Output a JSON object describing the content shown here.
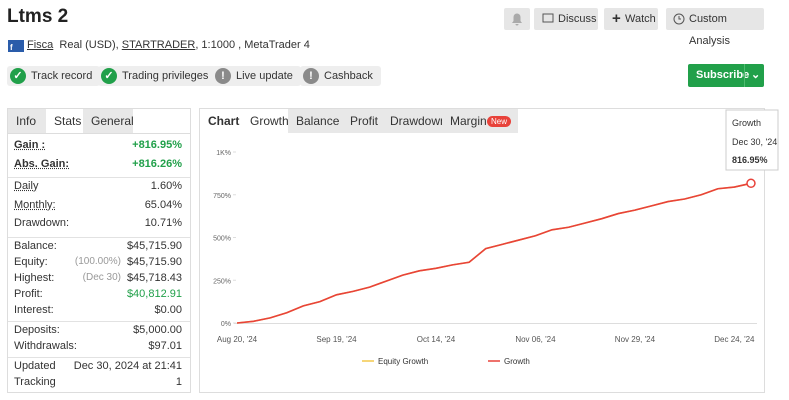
{
  "header": {
    "title": "Ltms 2",
    "buttons": [
      "Discuss",
      "Watch",
      "Custom Analysis"
    ]
  },
  "account": {
    "broker": "Fisca",
    "type": "Real (USD),",
    "server": "STARTRADER",
    "details": ", 1:1000 , MetaTrader 4"
  },
  "badges": [
    {
      "label": "Track record",
      "color": "#21a04a"
    },
    {
      "label": "Trading privileges",
      "color": "#21a04a"
    },
    {
      "label": "Live update",
      "color": "#8a8a8a"
    },
    {
      "label": "Cashback",
      "color": "#8a8a8a"
    }
  ],
  "subscribe": "Subscribe",
  "stats": {
    "tabs": [
      "Info",
      "Stats",
      "General"
    ],
    "groups": [
      [
        {
          "label": "Gain :",
          "value": "+816.95%",
          "color": "#21a04a"
        },
        {
          "label": "Abs. Gain:",
          "value": "+816.26%",
          "color": "#21a04a"
        }
      ],
      [
        {
          "label": "Daily",
          "value": "1.60%"
        },
        {
          "label": "Monthly:",
          "value": "65.04%"
        },
        {
          "label": "Drawdown:",
          "value": "10.71%"
        }
      ],
      [
        {
          "label": "Balance:",
          "value": "$45,715.90"
        },
        {
          "label": "Equity:",
          "note": "(100.00%)",
          "value": "$45,715.90"
        },
        {
          "label": "Highest:",
          "note": "(Dec 30)",
          "value": "$45,718.43"
        },
        {
          "label": "Profit:",
          "value": "$40,812.91",
          "color": "#21a04a"
        },
        {
          "label": "Interest:",
          "value": "$0.00"
        }
      ],
      [
        {
          "label": "Deposits:",
          "value": "$5,000.00"
        },
        {
          "label": "Withdrawals:",
          "value": "$97.01"
        }
      ],
      [
        {
          "label": "Updated",
          "value": "Dec 30, 2024 at 21:41"
        },
        {
          "label": "Tracking",
          "value": "1"
        }
      ]
    ]
  },
  "chart": {
    "tabs": [
      "Chart",
      "Growth",
      "Balance",
      "Profit",
      "Drawdown",
      "Margin"
    ],
    "new_badge": "New",
    "type": "line",
    "categories": [
      "Aug 20, '24",
      null,
      null,
      null,
      null,
      null,
      "Sep 19, '24",
      null,
      null,
      null,
      null,
      null,
      "Oct 14, '24",
      null,
      null,
      null,
      null,
      null,
      "Nov 06, '24",
      null,
      null,
      null,
      null,
      null,
      "Nov 29, '24",
      null,
      null,
      null,
      null,
      null,
      "Dec 24, '24",
      null
    ],
    "series": [
      {
        "name": "Equity Growth",
        "color": "#f2c94c",
        "values": [
          0,
          10,
          30,
          60,
          100,
          125,
          165,
          185,
          210,
          245,
          280,
          305,
          320,
          340,
          355,
          435,
          460,
          485,
          510,
          545,
          560,
          585,
          610,
          640,
          660,
          685,
          710,
          725,
          750,
          785,
          795,
          816.26
        ]
      },
      {
        "name": "Growth",
        "color": "#e8423a",
        "values": [
          0,
          10,
          30,
          60,
          100,
          125,
          165,
          185,
          210,
          245,
          280,
          305,
          320,
          340,
          355,
          435,
          460,
          485,
          510,
          545,
          560,
          585,
          610,
          640,
          660,
          685,
          710,
          725,
          750,
          785,
          795,
          816.95
        ]
      }
    ],
    "ylim": [
      0,
      1000
    ],
    "yticks": [
      {
        "value": 0,
        "label": "0%"
      },
      {
        "value": 250,
        "label": "250%"
      },
      {
        "value": 500,
        "label": "500%"
      },
      {
        "value": 750,
        "label": "750%"
      },
      {
        "value": 1000,
        "label": "1K%"
      }
    ],
    "tooltip": {
      "title": "Growth",
      "date": "Dec 30, '24",
      "value": "816.95%"
    }
  }
}
